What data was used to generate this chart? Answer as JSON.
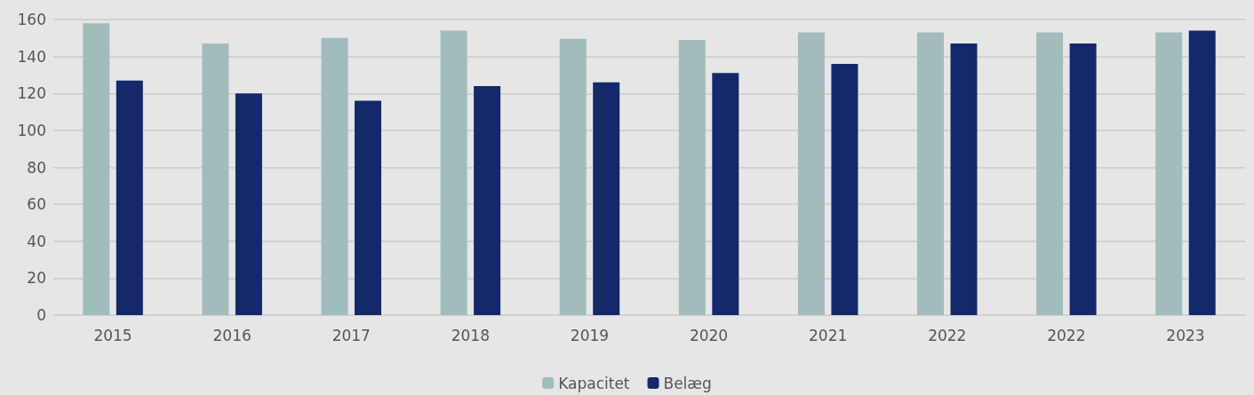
{
  "chart_data": {
    "type": "bar",
    "categories": [
      "2015",
      "2016",
      "2017",
      "2018",
      "2019",
      "2020",
      "2021",
      "2022",
      "2022",
      "2023"
    ],
    "series": [
      {
        "name": "Kapacitet",
        "color": "#a2bcbc",
        "values": [
          158,
          147,
          150,
          154,
          149.5,
          149,
          153,
          153,
          153,
          153
        ]
      },
      {
        "name": "Belæg",
        "color": "#14286a",
        "values": [
          127,
          120,
          116,
          124,
          126,
          131,
          136,
          147,
          147,
          154
        ]
      }
    ],
    "ylim": [
      0,
      160
    ],
    "yticks": [
      0,
      20,
      40,
      60,
      80,
      100,
      120,
      140,
      160
    ],
    "grid": "y",
    "legend": "bottom"
  }
}
